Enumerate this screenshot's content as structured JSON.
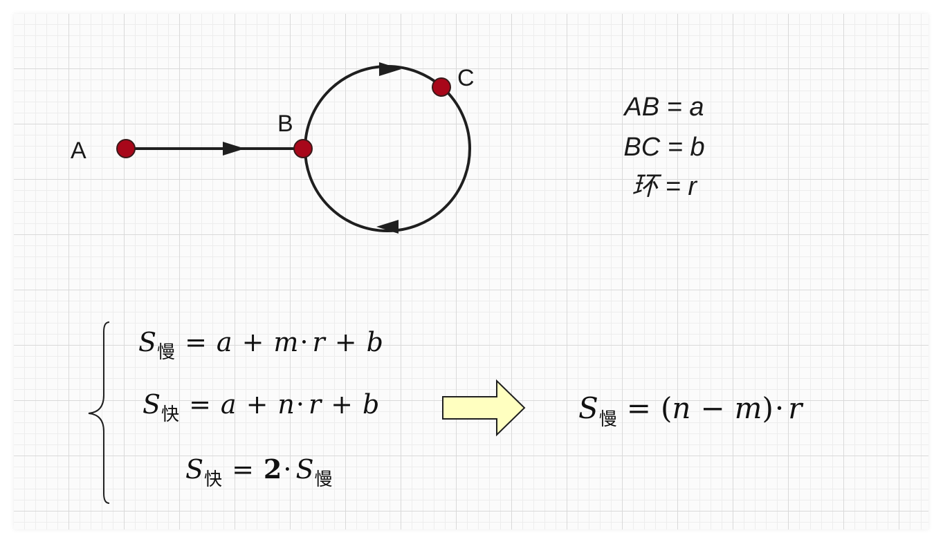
{
  "diagram": {
    "points": {
      "A": "A",
      "B": "B",
      "C": "C"
    },
    "definitions": [
      "AB = a",
      "BC = b",
      "环 = r"
    ],
    "colors": {
      "node_fill": "#a8071a",
      "stroke": "#1f1f1f",
      "arrow_fill": "#ffffc0"
    }
  },
  "equations": {
    "eq1": {
      "lhs": "S",
      "lhs_sub": "慢",
      "parts": [
        "=",
        "a",
        "+",
        "m",
        "·",
        "r",
        "+",
        "b"
      ]
    },
    "eq2": {
      "lhs": "S",
      "lhs_sub": "快",
      "parts": [
        "=",
        "a",
        "+",
        "n",
        "·",
        "r",
        "+",
        "b"
      ]
    },
    "eq3": {
      "lhs": "S",
      "lhs_sub": "快",
      "eq": "=",
      "coef": "2",
      "dot": "·",
      "rhs": "S",
      "rhs_sub": "慢"
    },
    "result": {
      "lhs": "S",
      "lhs_sub": "慢",
      "eq": "=",
      "open": "(",
      "n": "n",
      "minus": "−",
      "m": "m",
      "close": ")",
      "dot": "·",
      "r": "r"
    }
  }
}
